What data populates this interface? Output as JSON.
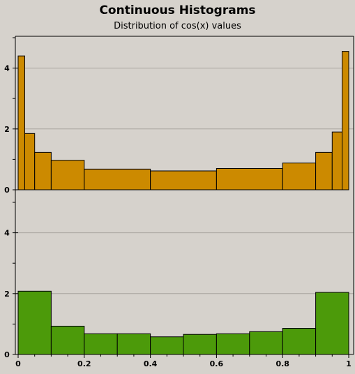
{
  "header": {
    "title": "Continuous Histograms",
    "subtitle": "Distribution of cos(x) values"
  },
  "colors": {
    "background": "#d6d2cc",
    "gridline": "#a8a49e",
    "axis": "#000000",
    "top_fill": "#cc8a00",
    "bottom_fill": "#4c9a0a",
    "bar_stroke": "#000000"
  },
  "chart_data": [
    {
      "type": "bar",
      "title": "Continuous Histograms",
      "subtitle": "Distribution of cos(x) values",
      "xlabel": "",
      "ylabel": "",
      "xlim": [
        0,
        1
      ],
      "ylim": [
        0,
        5
      ],
      "grid": true,
      "y_ticks": [
        0,
        2,
        4
      ],
      "x_ticks": [
        0,
        0.2,
        0.4,
        0.6,
        0.8,
        1
      ],
      "x_tick_labels": [],
      "bins": [
        {
          "x0": 0.0,
          "x1": 0.02,
          "value": 4.4
        },
        {
          "x0": 0.02,
          "x1": 0.05,
          "value": 1.85
        },
        {
          "x0": 0.05,
          "x1": 0.1,
          "value": 1.23
        },
        {
          "x0": 0.1,
          "x1": 0.2,
          "value": 0.97
        },
        {
          "x0": 0.2,
          "x1": 0.4,
          "value": 0.68
        },
        {
          "x0": 0.4,
          "x1": 0.6,
          "value": 0.62
        },
        {
          "x0": 0.6,
          "x1": 0.8,
          "value": 0.7
        },
        {
          "x0": 0.8,
          "x1": 0.9,
          "value": 0.88
        },
        {
          "x0": 0.9,
          "x1": 0.95,
          "value": 1.23
        },
        {
          "x0": 0.95,
          "x1": 0.98,
          "value": 1.9
        },
        {
          "x0": 0.98,
          "x1": 1.0,
          "value": 4.55
        }
      ]
    },
    {
      "type": "bar",
      "xlabel": "",
      "ylabel": "",
      "xlim": [
        0,
        1
      ],
      "ylim": [
        0,
        5
      ],
      "grid": true,
      "y_ticks": [
        0,
        2,
        4
      ],
      "x_ticks": [
        0,
        0.2,
        0.4,
        0.6,
        0.8,
        1
      ],
      "x_tick_labels": [
        "0",
        "0.2",
        "0.4",
        "0.6",
        "0.8",
        "1"
      ],
      "bins": [
        {
          "x0": 0.0,
          "x1": 0.1,
          "value": 2.08
        },
        {
          "x0": 0.1,
          "x1": 0.2,
          "value": 0.93
        },
        {
          "x0": 0.2,
          "x1": 0.3,
          "value": 0.68
        },
        {
          "x0": 0.3,
          "x1": 0.4,
          "value": 0.68
        },
        {
          "x0": 0.4,
          "x1": 0.5,
          "value": 0.58
        },
        {
          "x0": 0.5,
          "x1": 0.6,
          "value": 0.66
        },
        {
          "x0": 0.6,
          "x1": 0.7,
          "value": 0.68
        },
        {
          "x0": 0.7,
          "x1": 0.8,
          "value": 0.75
        },
        {
          "x0": 0.8,
          "x1": 0.9,
          "value": 0.86
        },
        {
          "x0": 0.9,
          "x1": 1.0,
          "value": 2.04
        }
      ]
    }
  ]
}
